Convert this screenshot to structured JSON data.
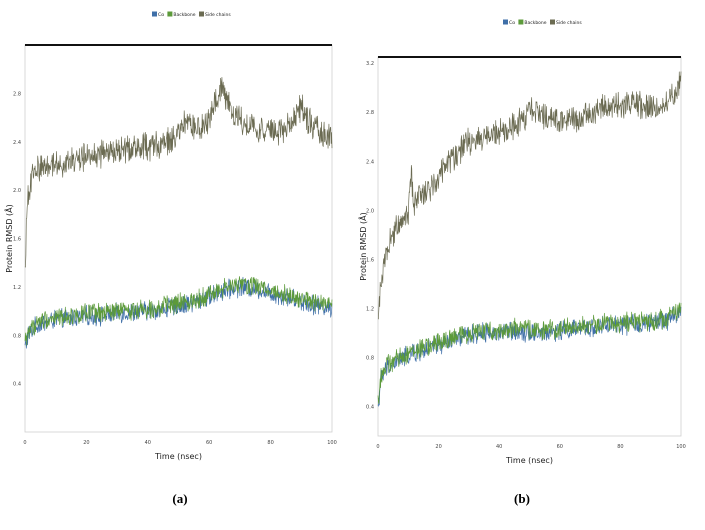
{
  "chart_data": [
    {
      "type": "line",
      "panel_label": "(a)",
      "xlabel": "Time (nsec)",
      "ylabel": "Protein RMSD (Å)",
      "xlim": [
        0,
        100
      ],
      "ylim": [
        0.0,
        3.2
      ],
      "x_ticks": [
        "0",
        "20",
        "40",
        "60",
        "80",
        "100"
      ],
      "y_ticks": [
        "0.4",
        "0.8",
        "1.2",
        "1.6",
        "2.0",
        "2.4",
        "2.8"
      ],
      "legend_position": "top-center",
      "series": [
        {
          "name": "Cα",
          "color": "#3f6fa8",
          "values": [
            [
              0,
              0.7
            ],
            [
              1,
              0.8
            ],
            [
              3,
              0.86
            ],
            [
              5,
              0.9
            ],
            [
              10,
              0.93
            ],
            [
              15,
              0.94
            ],
            [
              20,
              0.96
            ],
            [
              25,
              0.96
            ],
            [
              30,
              0.98
            ],
            [
              35,
              0.99
            ],
            [
              40,
              1.0
            ],
            [
              45,
              1.02
            ],
            [
              50,
              1.04
            ],
            [
              55,
              1.07
            ],
            [
              60,
              1.12
            ],
            [
              65,
              1.17
            ],
            [
              70,
              1.2
            ],
            [
              75,
              1.19
            ],
            [
              80,
              1.15
            ],
            [
              85,
              1.12
            ],
            [
              90,
              1.08
            ],
            [
              95,
              1.05
            ],
            [
              100,
              1.02
            ]
          ]
        },
        {
          "name": "Backbone",
          "color": "#5c9a3a",
          "values": [
            [
              0,
              0.74
            ],
            [
              1,
              0.83
            ],
            [
              3,
              0.88
            ],
            [
              5,
              0.92
            ],
            [
              10,
              0.95
            ],
            [
              15,
              0.96
            ],
            [
              20,
              0.98
            ],
            [
              25,
              0.98
            ],
            [
              30,
              1.0
            ],
            [
              35,
              1.01
            ],
            [
              40,
              1.02
            ],
            [
              45,
              1.04
            ],
            [
              50,
              1.06
            ],
            [
              55,
              1.09
            ],
            [
              60,
              1.14
            ],
            [
              65,
              1.19
            ],
            [
              70,
              1.22
            ],
            [
              75,
              1.21
            ],
            [
              80,
              1.17
            ],
            [
              85,
              1.14
            ],
            [
              90,
              1.1
            ],
            [
              95,
              1.07
            ],
            [
              100,
              1.04
            ]
          ]
        },
        {
          "name": "Side chains",
          "color": "#6b6b52",
          "values": [
            [
              0,
              1.3
            ],
            [
              0.5,
              1.7
            ],
            [
              1,
              1.95
            ],
            [
              2,
              2.1
            ],
            [
              4,
              2.18
            ],
            [
              8,
              2.22
            ],
            [
              12,
              2.22
            ],
            [
              16,
              2.24
            ],
            [
              20,
              2.28
            ],
            [
              25,
              2.3
            ],
            [
              30,
              2.32
            ],
            [
              35,
              2.35
            ],
            [
              40,
              2.36
            ],
            [
              45,
              2.38
            ],
            [
              50,
              2.45
            ],
            [
              52,
              2.55
            ],
            [
              55,
              2.52
            ],
            [
              58,
              2.5
            ],
            [
              60,
              2.58
            ],
            [
              63,
              2.8
            ],
            [
              64,
              2.88
            ],
            [
              66,
              2.72
            ],
            [
              68,
              2.62
            ],
            [
              70,
              2.58
            ],
            [
              75,
              2.52
            ],
            [
              80,
              2.48
            ],
            [
              85,
              2.5
            ],
            [
              88,
              2.62
            ],
            [
              90,
              2.68
            ],
            [
              93,
              2.55
            ],
            [
              96,
              2.48
            ],
            [
              100,
              2.45
            ]
          ]
        }
      ]
    },
    {
      "type": "line",
      "panel_label": "(b)",
      "xlabel": "Time (nsec)",
      "ylabel": "Protein RMSD (Å)",
      "xlim": [
        0,
        100
      ],
      "ylim": [
        0.16,
        3.25
      ],
      "x_ticks": [
        "0",
        "20",
        "40",
        "60",
        "80",
        "100"
      ],
      "y_ticks": [
        "0.4",
        "0.8",
        "1.2",
        "1.6",
        "2.0",
        "2.4",
        "2.8",
        "3.2"
      ],
      "legend_position": "top-center",
      "series": [
        {
          "name": "Cα",
          "color": "#3f6fa8",
          "values": [
            [
              0,
              0.4
            ],
            [
              1,
              0.62
            ],
            [
              3,
              0.72
            ],
            [
              6,
              0.76
            ],
            [
              10,
              0.82
            ],
            [
              15,
              0.86
            ],
            [
              20,
              0.9
            ],
            [
              25,
              0.94
            ],
            [
              30,
              0.98
            ],
            [
              35,
              1.0
            ],
            [
              40,
              1.0
            ],
            [
              45,
              1.02
            ],
            [
              50,
              1.01
            ],
            [
              55,
              1.0
            ],
            [
              60,
              1.02
            ],
            [
              65,
              1.03
            ],
            [
              70,
              1.04
            ],
            [
              75,
              1.06
            ],
            [
              80,
              1.06
            ],
            [
              85,
              1.07
            ],
            [
              90,
              1.08
            ],
            [
              95,
              1.1
            ],
            [
              100,
              1.18
            ]
          ]
        },
        {
          "name": "Backbone",
          "color": "#5c9a3a",
          "values": [
            [
              0,
              0.44
            ],
            [
              1,
              0.65
            ],
            [
              3,
              0.74
            ],
            [
              6,
              0.78
            ],
            [
              10,
              0.84
            ],
            [
              15,
              0.88
            ],
            [
              20,
              0.92
            ],
            [
              25,
              0.96
            ],
            [
              30,
              1.0
            ],
            [
              35,
              1.02
            ],
            [
              40,
              1.02
            ],
            [
              45,
              1.04
            ],
            [
              50,
              1.03
            ],
            [
              55,
              1.02
            ],
            [
              60,
              1.04
            ],
            [
              65,
              1.05
            ],
            [
              70,
              1.06
            ],
            [
              75,
              1.08
            ],
            [
              80,
              1.08
            ],
            [
              85,
              1.09
            ],
            [
              90,
              1.1
            ],
            [
              95,
              1.12
            ],
            [
              100,
              1.2
            ]
          ]
        },
        {
          "name": "Side chains",
          "color": "#6b6b52",
          "values": [
            [
              0,
              1.05
            ],
            [
              1,
              1.45
            ],
            [
              3,
              1.7
            ],
            [
              6,
              1.85
            ],
            [
              8,
              1.95
            ],
            [
              10,
              2.0
            ],
            [
              11,
              2.3
            ],
            [
              12,
              2.05
            ],
            [
              15,
              2.15
            ],
            [
              18,
              2.2
            ],
            [
              20,
              2.3
            ],
            [
              25,
              2.45
            ],
            [
              30,
              2.55
            ],
            [
              35,
              2.6
            ],
            [
              40,
              2.62
            ],
            [
              45,
              2.68
            ],
            [
              48,
              2.75
            ],
            [
              50,
              2.8
            ],
            [
              55,
              2.78
            ],
            [
              60,
              2.72
            ],
            [
              65,
              2.74
            ],
            [
              70,
              2.8
            ],
            [
              75,
              2.85
            ],
            [
              80,
              2.84
            ],
            [
              85,
              2.86
            ],
            [
              90,
              2.85
            ],
            [
              95,
              2.88
            ],
            [
              98,
              2.95
            ],
            [
              100,
              3.05
            ]
          ]
        }
      ]
    }
  ]
}
